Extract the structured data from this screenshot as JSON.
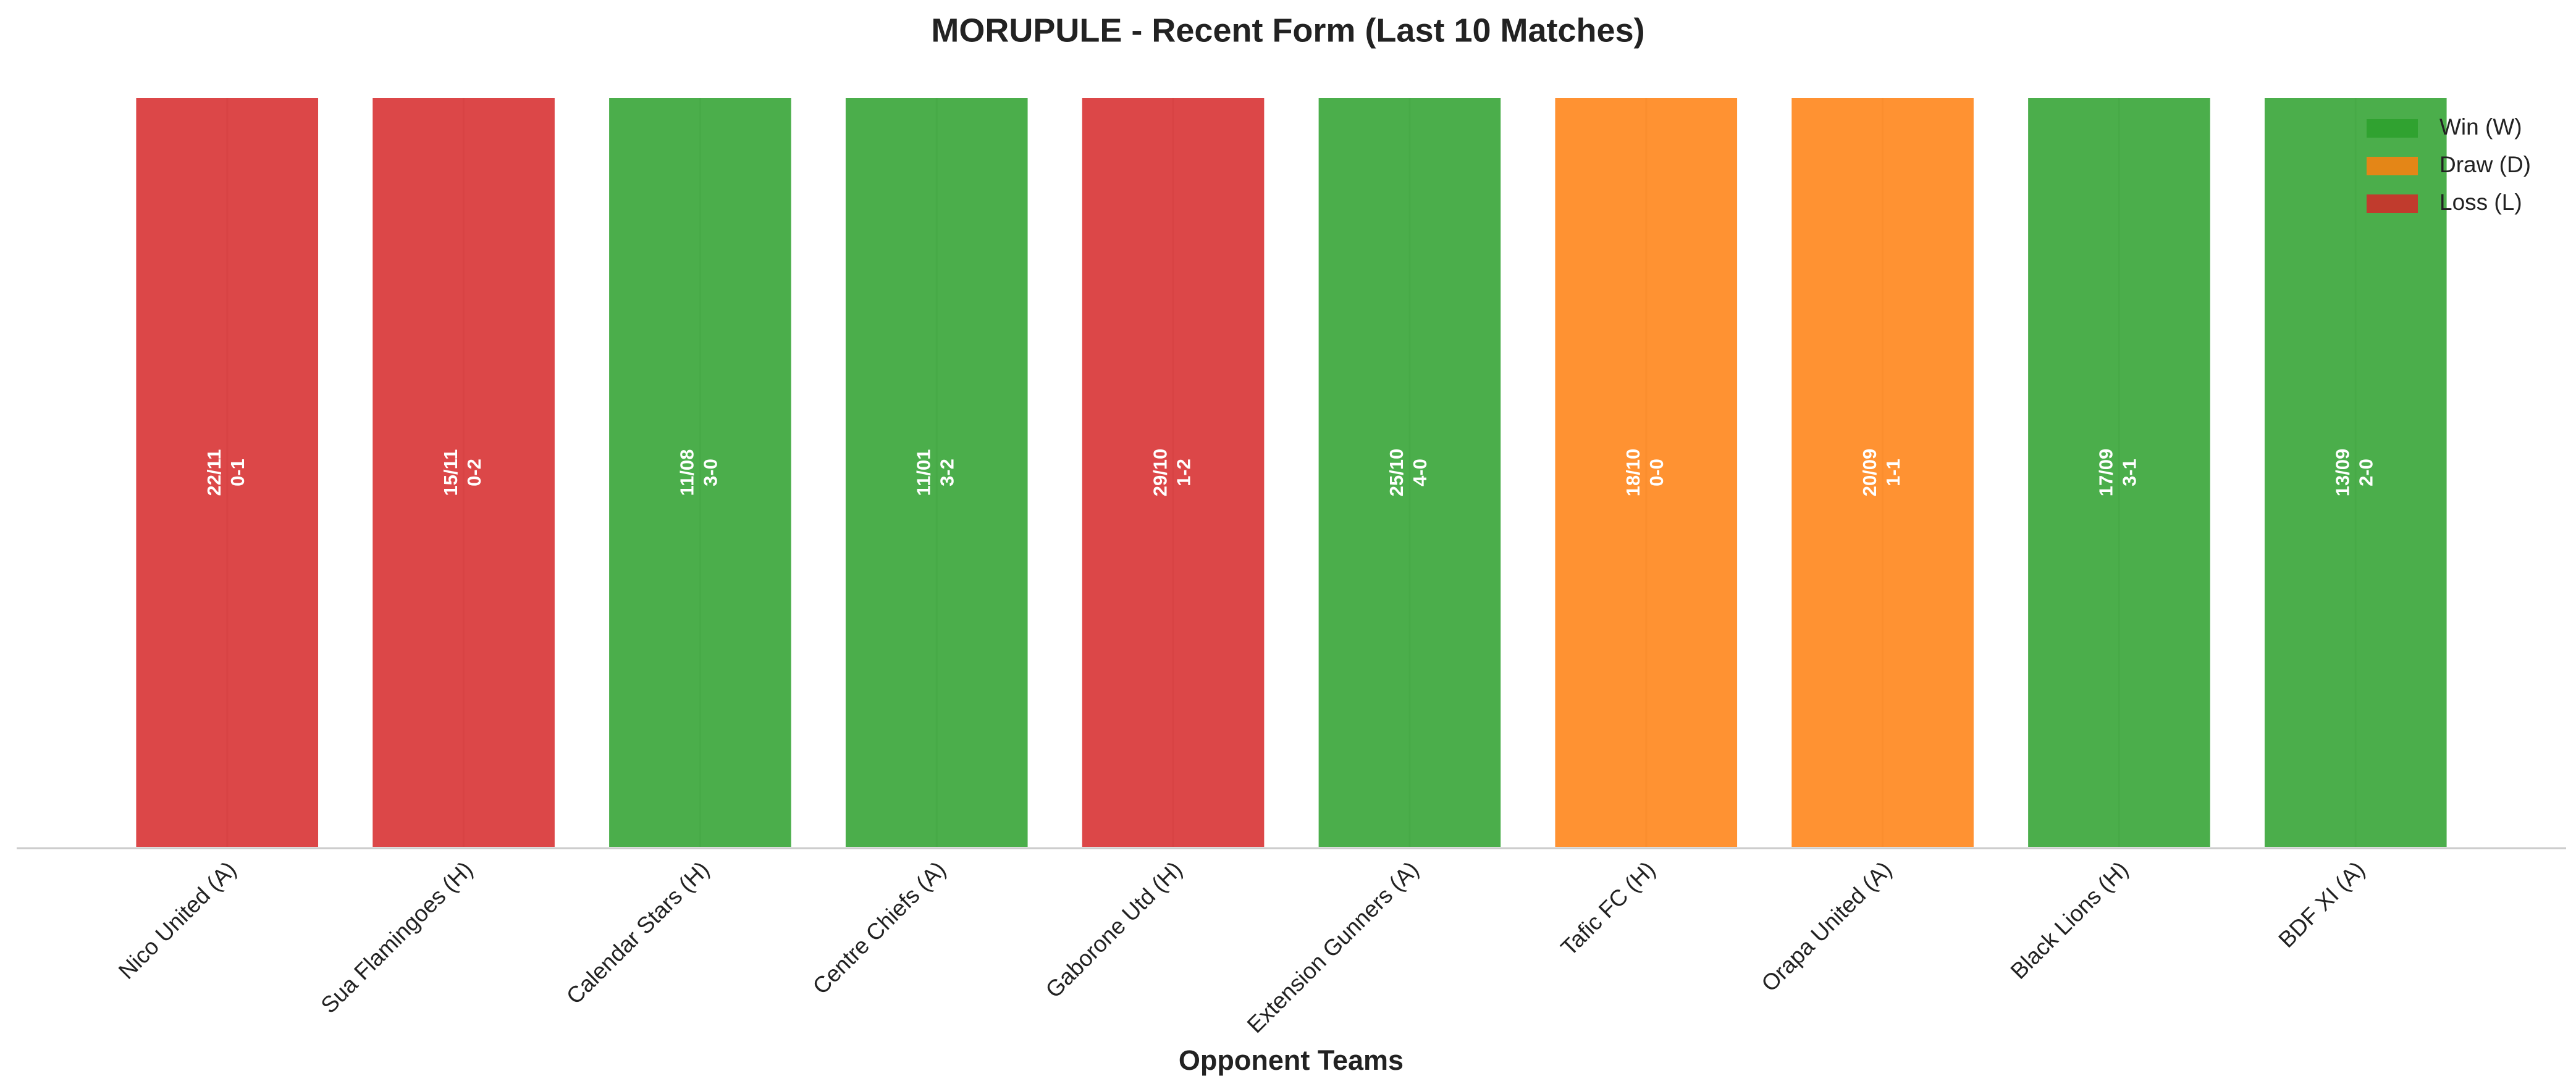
{
  "chart_data": {
    "type": "bar",
    "title": "MORUPULE - Recent Form (Last 10 Matches)",
    "x_label": "Opponent Teams",
    "categories": [
      "Nico United (A)",
      "Sua Flamingoes (H)",
      "Calendar Stars (H)",
      "Centre Chiefs (A)",
      "Gaborone Utd (H)",
      "Extension Gunners (A)",
      "Tafic FC (H)",
      "Orapa United (A)",
      "Black Lions (H)",
      "BDF XI (A)"
    ],
    "values": [
      1,
      1,
      1,
      1,
      1,
      1,
      1,
      1,
      1,
      1
    ],
    "colors": [
      "#d62728",
      "#d62728",
      "#2ca02c",
      "#2ca02c",
      "#d62728",
      "#2ca02c",
      "#ff7f0e",
      "#ff7f0e",
      "#2ca02c",
      "#2ca02c"
    ],
    "dates": [
      "22/11",
      "15/11",
      "11/08",
      "11/01",
      "29/10",
      "25/10",
      "18/10",
      "20/09",
      "17/09",
      "13/09"
    ],
    "scores": [
      "0-1",
      "0-2",
      "3-0",
      "3-2",
      "1-2",
      "4-0",
      "0-0",
      "1-1",
      "3-1",
      "2-0"
    ],
    "ylim": [
      0,
      1
    ],
    "grid": true,
    "legend_position": "upper right",
    "legend": [
      {
        "name": "Win (W)",
        "color": "#2ca02c"
      },
      {
        "name": "Draw (D)",
        "color": "#ff7f0e"
      },
      {
        "name": "Loss (L)",
        "color": "#d62728"
      }
    ]
  }
}
